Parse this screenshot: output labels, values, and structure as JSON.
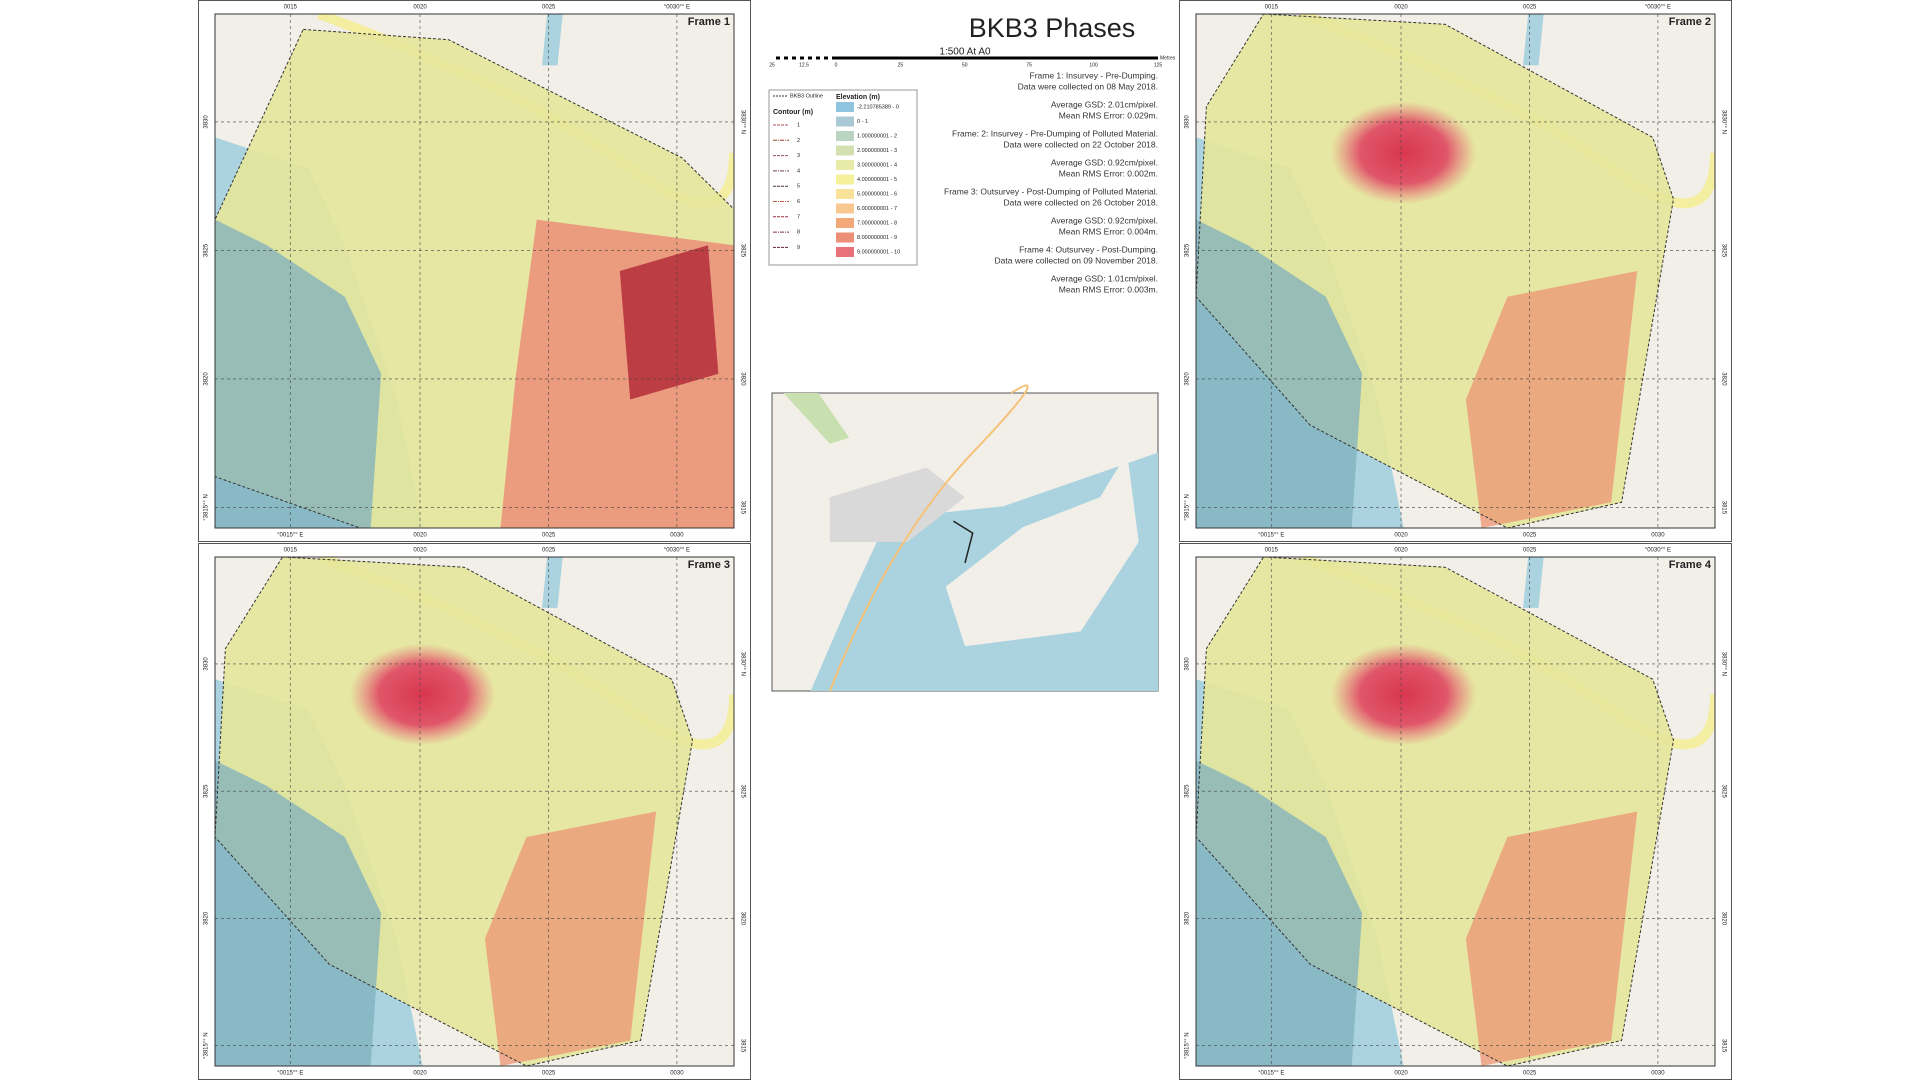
{
  "title": "BKB3 Phases",
  "scale": {
    "text": "1:500 At A0",
    "ticks": [
      "25",
      "12.5",
      "0",
      "25",
      "50",
      "75",
      "100",
      "125"
    ],
    "unit": "Metres"
  },
  "frames": [
    {
      "label": "Frame 1"
    },
    {
      "label": "Frame 2"
    },
    {
      "label": "Frame 3"
    },
    {
      "label": "Frame 4"
    }
  ],
  "grid": {
    "top": [
      "0015",
      "0020",
      "0025",
      "°0030°° E"
    ],
    "bottom": [
      "°0015°° E",
      "0020",
      "0025",
      "0030"
    ],
    "left": [
      "3830",
      "3825",
      "3820",
      "°3815°° N"
    ],
    "right": [
      "3830°° N",
      "3825",
      "3820",
      "3815"
    ]
  },
  "legend": {
    "outline": "BKB3 Outline",
    "contour_title": "Contour (m)",
    "contours": [
      "1",
      "2",
      "3",
      "4",
      "5",
      "6",
      "7",
      "8",
      "9"
    ],
    "elevation_title": "Elevation (m)",
    "elevation": [
      {
        "label": "-2.210785389 - 0",
        "color": "#8ec4dd"
      },
      {
        "label": "0 - 1",
        "color": "#a9c9d5"
      },
      {
        "label": "1.000000001 - 2",
        "color": "#b9d4c0"
      },
      {
        "label": "2.000000001 - 3",
        "color": "#d4e0b0"
      },
      {
        "label": "3.000000001 - 4",
        "color": "#e8eaa8"
      },
      {
        "label": "4.000000001 - 5",
        "color": "#f5f09a"
      },
      {
        "label": "5.000000001 - 6",
        "color": "#f8e29a"
      },
      {
        "label": "6.000000001 - 7",
        "color": "#f8c890"
      },
      {
        "label": "7.000000001 - 8",
        "color": "#f2a878"
      },
      {
        "label": "8.000000001 - 9",
        "color": "#ec8e78"
      },
      {
        "label": "9.000000001 - 10",
        "color": "#e9717a"
      }
    ]
  },
  "notes": [
    [
      "Frame 1: Insurvey - Pre-Dumping.",
      "Data were collected on 08 May 2018."
    ],
    [
      "Average GSD: 2.01cm/pixel.",
      "Mean RMS Error: 0.029m."
    ],
    [
      "Frame: 2: Insurvey - Pre-Dumping of Polluted Material.",
      "Data were collected on 22 October 2018."
    ],
    [
      "Average GSD: 0.92cm/pixel.",
      "Mean RMS Error: 0.002m."
    ],
    [
      "Frame 3: Outsurvey - Post-Dumping of Polluted Material.",
      "Data were collected on 26 October 2018."
    ],
    [
      "Average GSD: 0.92cm/pixel.",
      "Mean RMS Error: 0.004m."
    ],
    [
      "Frame 4: Outsurvey - Post-Dumping.",
      "Data were collected on 09 November 2018."
    ],
    [
      "Average GSD: 1.01cm/pixel.",
      "Mean RMS Error: 0.003m."
    ]
  ]
}
